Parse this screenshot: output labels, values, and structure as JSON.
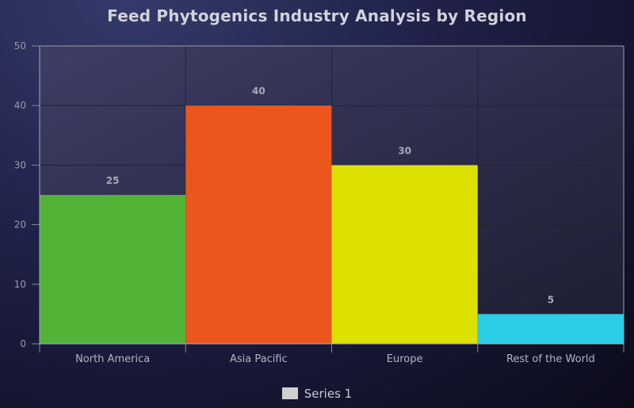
{
  "chart_data": {
    "type": "bar",
    "title": "Feed Phytogenics Industry Analysis by Region",
    "categories": [
      "North America",
      "Asia Pacific",
      "Europe",
      "Rest of the World"
    ],
    "series": [
      {
        "name": "Series 1",
        "values": [
          25,
          40,
          30,
          5
        ]
      }
    ],
    "bar_colors": [
      "#52b336",
      "#ea561c",
      "#dde100",
      "#2ccde6"
    ],
    "data_labels": [
      "25",
      "40",
      "30",
      "5"
    ],
    "y_ticks": [
      "0",
      "10",
      "20",
      "30",
      "40",
      "50"
    ],
    "ylim": [
      0,
      50
    ],
    "xlabel": "",
    "ylabel": "",
    "grid": true,
    "legend_position": "bottom"
  },
  "legend": {
    "label": "Series 1",
    "swatch_color": "#d0d0d0"
  }
}
